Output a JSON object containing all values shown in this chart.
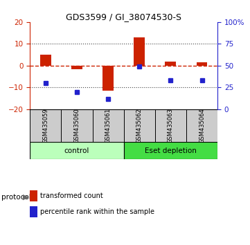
{
  "title": "GDS3599 / GI_38074530-S",
  "samples": [
    "GSM435059",
    "GSM435060",
    "GSM435061",
    "GSM435062",
    "GSM435063",
    "GSM435064"
  ],
  "transformed_count": [
    5.0,
    -1.5,
    -11.5,
    13.0,
    2.0,
    1.5
  ],
  "percentile_rank": [
    30,
    20,
    12,
    49,
    33,
    33
  ],
  "ylim_left": [
    -20,
    20
  ],
  "ylim_right": [
    0,
    100
  ],
  "yticks_left": [
    -20,
    -10,
    0,
    10,
    20
  ],
  "yticks_right": [
    0,
    25,
    50,
    75,
    100
  ],
  "bar_color": "#cc2200",
  "dot_color": "#2222cc",
  "hline_color": "#cc2200",
  "dotted_color": "#444444",
  "protocol_groups": [
    {
      "label": "control",
      "indices": [
        0,
        1,
        2
      ],
      "color": "#bbffbb"
    },
    {
      "label": "Eset depletion",
      "indices": [
        3,
        4,
        5
      ],
      "color": "#44dd44"
    }
  ],
  "legend_bar_label": "transformed count",
  "legend_dot_label": "percentile rank within the sample",
  "protocol_label": "protocol",
  "background_color": "#ffffff",
  "tick_bg": "#cccccc",
  "bar_width": 0.35,
  "dot_size": 5
}
